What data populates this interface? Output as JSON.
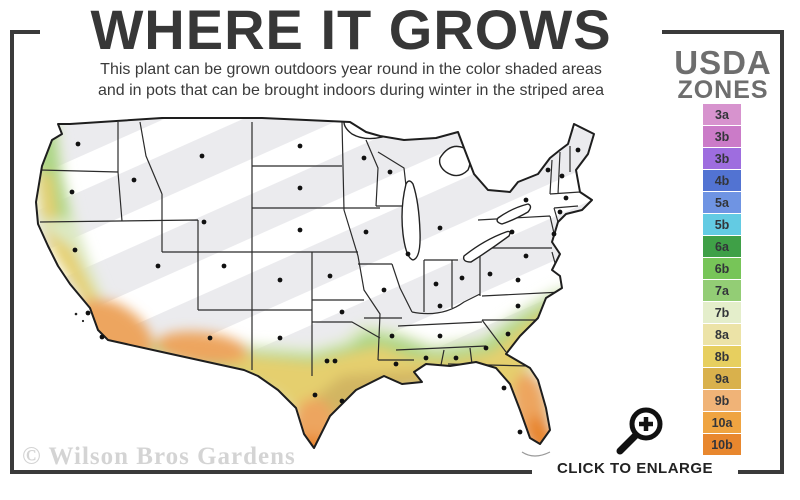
{
  "title": "WHERE IT GROWS",
  "subtitle_line1": "This plant can be grown outdoors year round in the color shaded areas",
  "subtitle_line2": "and in pots that can be brought indoors during winter in the striped area",
  "legend": {
    "heading_line1": "USDA",
    "heading_line2": "ZONES",
    "zones": [
      {
        "label": "3a",
        "color": "#d793ce"
      },
      {
        "label": "3b",
        "color": "#cb7bc8"
      },
      {
        "label": "3b",
        "color": "#9e6ddf"
      },
      {
        "label": "4b",
        "color": "#5273d2"
      },
      {
        "label": "5a",
        "color": "#6f94e3"
      },
      {
        "label": "5b",
        "color": "#63cbe3"
      },
      {
        "label": "6a",
        "color": "#3fa047"
      },
      {
        "label": "6b",
        "color": "#77c558"
      },
      {
        "label": "7a",
        "color": "#93cd75"
      },
      {
        "label": "7b",
        "color": "#e4eecb"
      },
      {
        "label": "8a",
        "color": "#ece3a7"
      },
      {
        "label": "8b",
        "color": "#e7cf5f"
      },
      {
        "label": "9a",
        "color": "#d9b14c"
      },
      {
        "label": "9b",
        "color": "#f0b377"
      },
      {
        "label": "10a",
        "color": "#efa441"
      },
      {
        "label": "10b",
        "color": "#e8872e"
      }
    ]
  },
  "map": {
    "region": "continental United States",
    "striped_area_meaning": "grow in pots brought indoors during winter",
    "colored_area_meaning": "grown outdoors year round",
    "striped_gray": "#ebebee",
    "zone_band_colors": [
      "#dce9c2",
      "#abd584",
      "#e5cf6e",
      "#d2b562",
      "#eda55f",
      "#e8862e"
    ]
  },
  "watermark": "© Wilson Bros Gardens",
  "enlarge": {
    "label": "CLICK TO ENLARGE",
    "icon": "magnifier-plus-icon"
  },
  "frame_color": "#3a3a3a"
}
